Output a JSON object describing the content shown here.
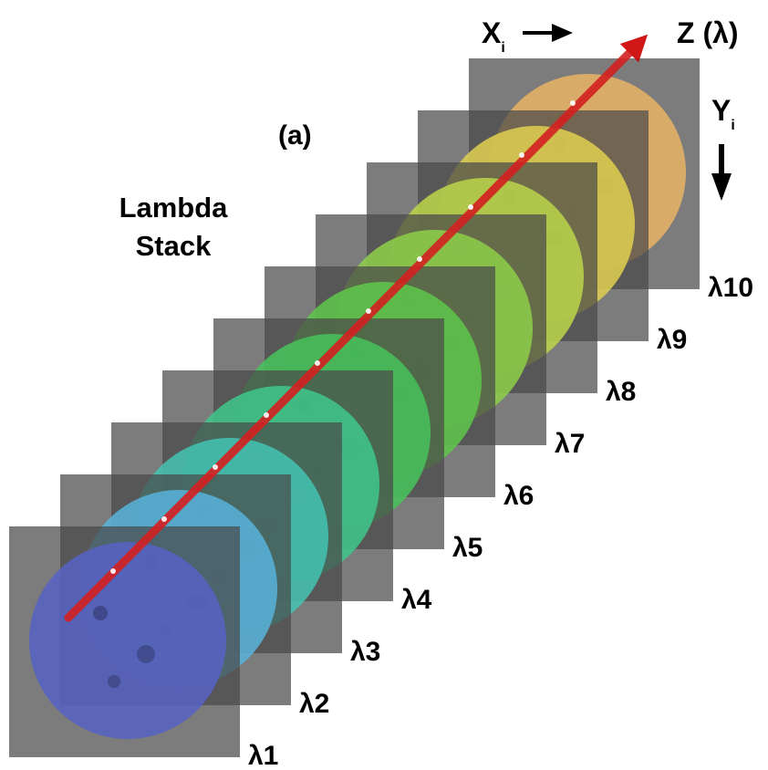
{
  "panel_label": "(a)",
  "title_lines": [
    "Lambda",
    "Stack"
  ],
  "axes": {
    "x": {
      "letter": "X",
      "subscript": "i"
    },
    "y": {
      "letter": "Y",
      "subscript": "i"
    },
    "z": "Z (λ)"
  },
  "slices": [
    {
      "label": "λ1",
      "color": "#5662c4"
    },
    {
      "label": "λ2",
      "color": "#58b4dc"
    },
    {
      "label": "λ3",
      "color": "#44c4b4"
    },
    {
      "label": "λ4",
      "color": "#3ec88c"
    },
    {
      "label": "λ5",
      "color": "#46c45a"
    },
    {
      "label": "λ6",
      "color": "#5ec84a"
    },
    {
      "label": "λ7",
      "color": "#8ed04a"
    },
    {
      "label": "λ8",
      "color": "#bcd64a"
    },
    {
      "label": "λ9",
      "color": "#e0d050"
    },
    {
      "label": "λ10",
      "color": "#eab466"
    }
  ]
}
